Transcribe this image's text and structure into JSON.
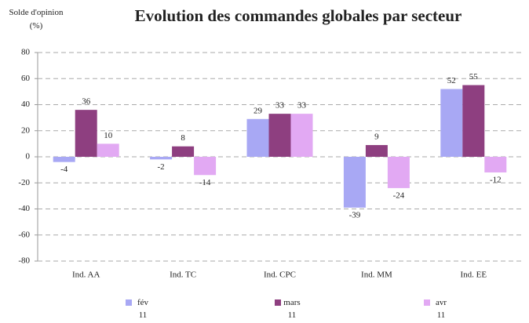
{
  "chart_data": {
    "type": "bar",
    "title": "Evolution des commandes globales par secteur",
    "y_label": "Solde d'opinion (%)",
    "categories": [
      "Ind. AA",
      "Ind. TC",
      "Ind. CPC",
      "Ind. MM",
      "Ind. EE"
    ],
    "series": [
      {
        "name": "fév 11",
        "color": "#a8a8f4",
        "values": [
          -4,
          -2,
          29,
          -39,
          52
        ]
      },
      {
        "name": "mars 11",
        "color": "#8e3f80",
        "values": [
          36,
          8,
          33,
          9,
          55
        ]
      },
      {
        "name": "avr 11",
        "color": "#e2a9f3",
        "values": [
          10,
          -14,
          33,
          -24,
          -12
        ]
      }
    ],
    "ylim": [
      -80,
      80
    ],
    "yticks": [
      -80,
      -60,
      -40,
      -20,
      0,
      20,
      40,
      60,
      80
    ],
    "grid": true
  }
}
